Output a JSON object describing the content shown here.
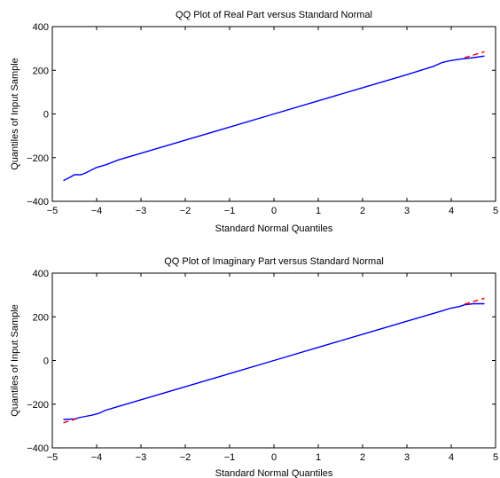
{
  "colors": {
    "sample_line": "#0000ff",
    "reference_line": "#ff0000",
    "axes": "#000000",
    "background": "#ffffff"
  },
  "chart_data": [
    {
      "type": "line",
      "title": "QQ Plot of Real Part versus Standard Normal",
      "xlabel": "Standard Normal Quantiles",
      "ylabel": "Quantiles of Input Sample",
      "xlim": [
        -5,
        5
      ],
      "ylim": [
        -400,
        400
      ],
      "xticks": [
        -5,
        -4,
        -3,
        -2,
        -1,
        0,
        1,
        2,
        3,
        4,
        5
      ],
      "yticks": [
        -400,
        -200,
        0,
        200,
        400
      ],
      "xtick_labels": [
        "−5",
        "−4",
        "−3",
        "−2",
        "−1",
        "0",
        "1",
        "2",
        "3",
        "4",
        "5"
      ],
      "ytick_labels": [
        "−400",
        "−200",
        "0",
        "200",
        "400"
      ],
      "grid": false,
      "series": [
        {
          "style": "solid",
          "color": "#0000ff",
          "x": [
            -4.75,
            -4.6,
            -4.5,
            -4.35,
            -4.25,
            -4.1,
            -4.0,
            -3.8,
            -3.5,
            -3.0,
            -2.0,
            -1.0,
            0.0,
            1.0,
            2.0,
            3.0,
            3.6,
            3.8,
            4.0,
            4.2,
            4.5,
            4.75
          ],
          "y": [
            -305,
            -290,
            -278,
            -278,
            -270,
            -255,
            -245,
            -233,
            -210,
            -180,
            -120,
            -60,
            0,
            60,
            120,
            180,
            218,
            236,
            245,
            251,
            258,
            265
          ]
        },
        {
          "style": "dashed",
          "color": "#ff0000",
          "x": [
            4.3,
            4.75
          ],
          "y": [
            258,
            285
          ]
        }
      ]
    },
    {
      "type": "line",
      "title": "QQ Plot of Imaginary Part versus Standard Normal",
      "xlabel": "Standard Normal Quantiles",
      "ylabel": "Quantiles of Input Sample",
      "xlim": [
        -5,
        5
      ],
      "ylim": [
        -400,
        400
      ],
      "xticks": [
        -5,
        -4,
        -3,
        -2,
        -1,
        0,
        1,
        2,
        3,
        4,
        5
      ],
      "yticks": [
        -400,
        -200,
        0,
        200,
        400
      ],
      "xtick_labels": [
        "−5",
        "−4",
        "−3",
        "−2",
        "−1",
        "0",
        "1",
        "2",
        "3",
        "4",
        "5"
      ],
      "ytick_labels": [
        "−400",
        "−200",
        "0",
        "200",
        "400"
      ],
      "grid": false,
      "series": [
        {
          "style": "solid",
          "color": "#0000ff",
          "x": [
            -4.75,
            -4.5,
            -4.4,
            -4.3,
            -4.1,
            -3.95,
            -3.8,
            -3.5,
            -3.0,
            -2.0,
            -1.0,
            0.0,
            1.0,
            2.0,
            3.0,
            3.8,
            4.0,
            4.2,
            4.3,
            4.5,
            4.75
          ],
          "y": [
            -270,
            -268,
            -262,
            -258,
            -250,
            -242,
            -228,
            -210,
            -180,
            -120,
            -60,
            0,
            60,
            120,
            180,
            228,
            240,
            248,
            255,
            260,
            260
          ]
        },
        {
          "style": "dashed",
          "color": "#ff0000",
          "x": [
            -4.75,
            -4.45
          ],
          "y": [
            -285,
            -267
          ]
        },
        {
          "style": "dashed",
          "color": "#ff0000",
          "x": [
            4.3,
            4.75
          ],
          "y": [
            258,
            285
          ]
        }
      ]
    }
  ]
}
